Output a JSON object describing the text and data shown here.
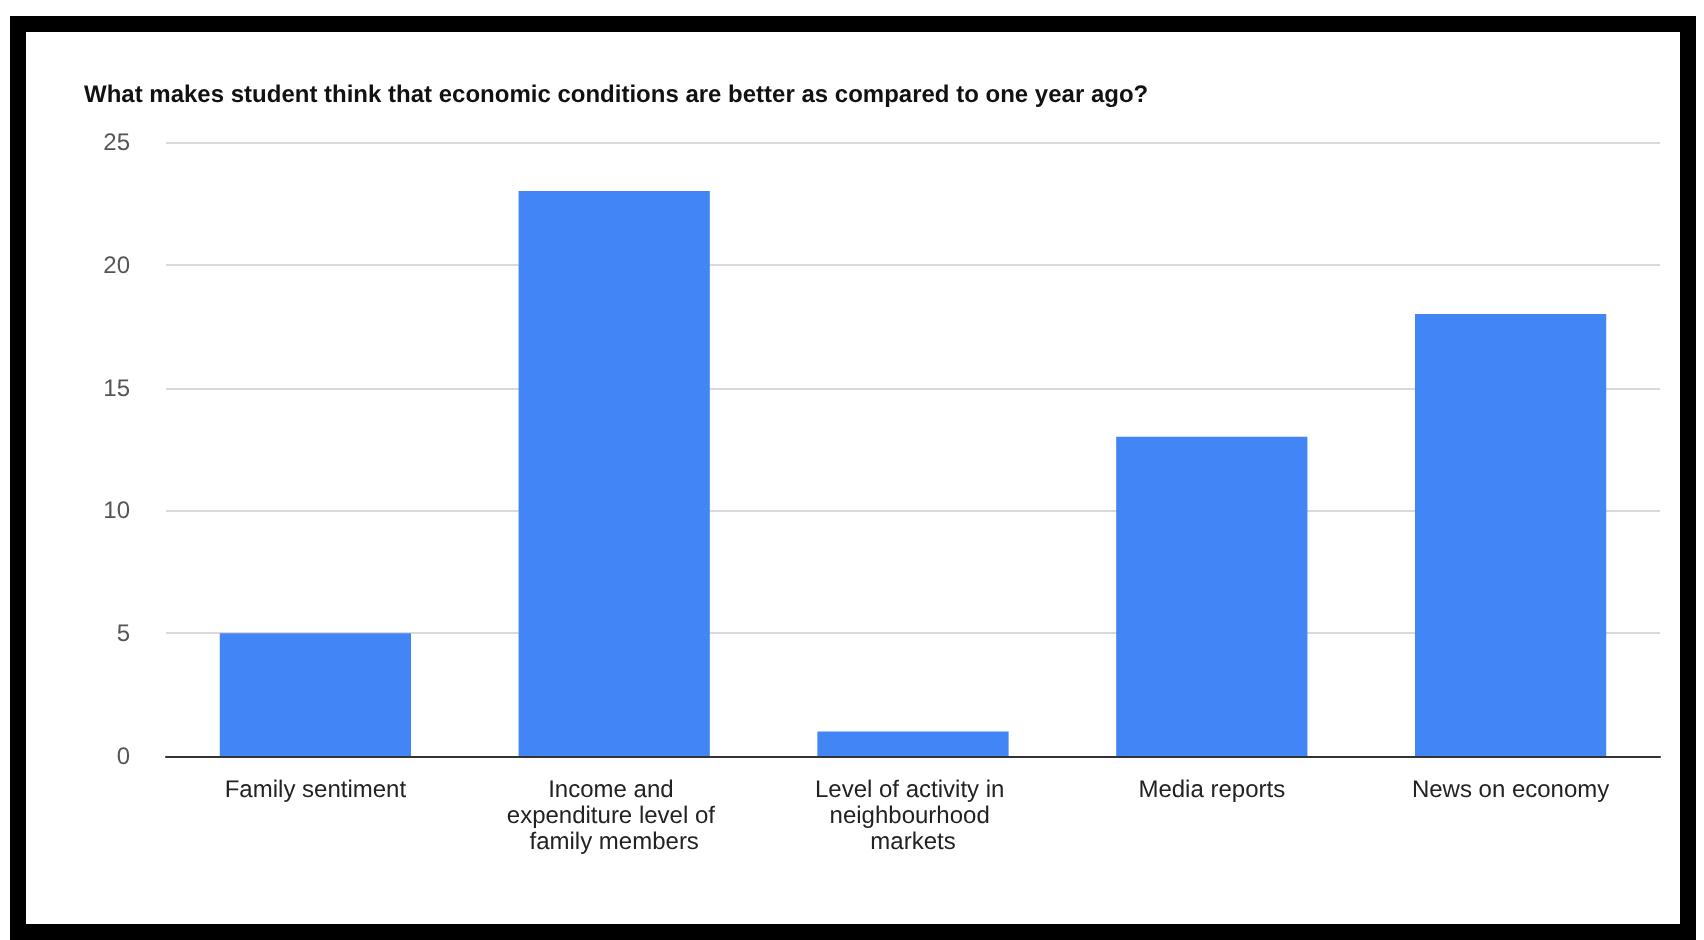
{
  "chart_data": {
    "type": "bar",
    "title": "What makes student think that economic conditions are better as compared to one year ago?",
    "categories": [
      "Family sentiment",
      "Income and expenditure level of family members",
      "Level of activity in neighbourhood markets",
      "Media reports",
      "News on economy"
    ],
    "values": [
      5,
      23,
      1,
      13,
      18
    ],
    "color": "#4285f4",
    "ylim": [
      0,
      25
    ],
    "yticks": [
      0,
      5,
      10,
      15,
      20,
      25
    ],
    "grid": true
  }
}
